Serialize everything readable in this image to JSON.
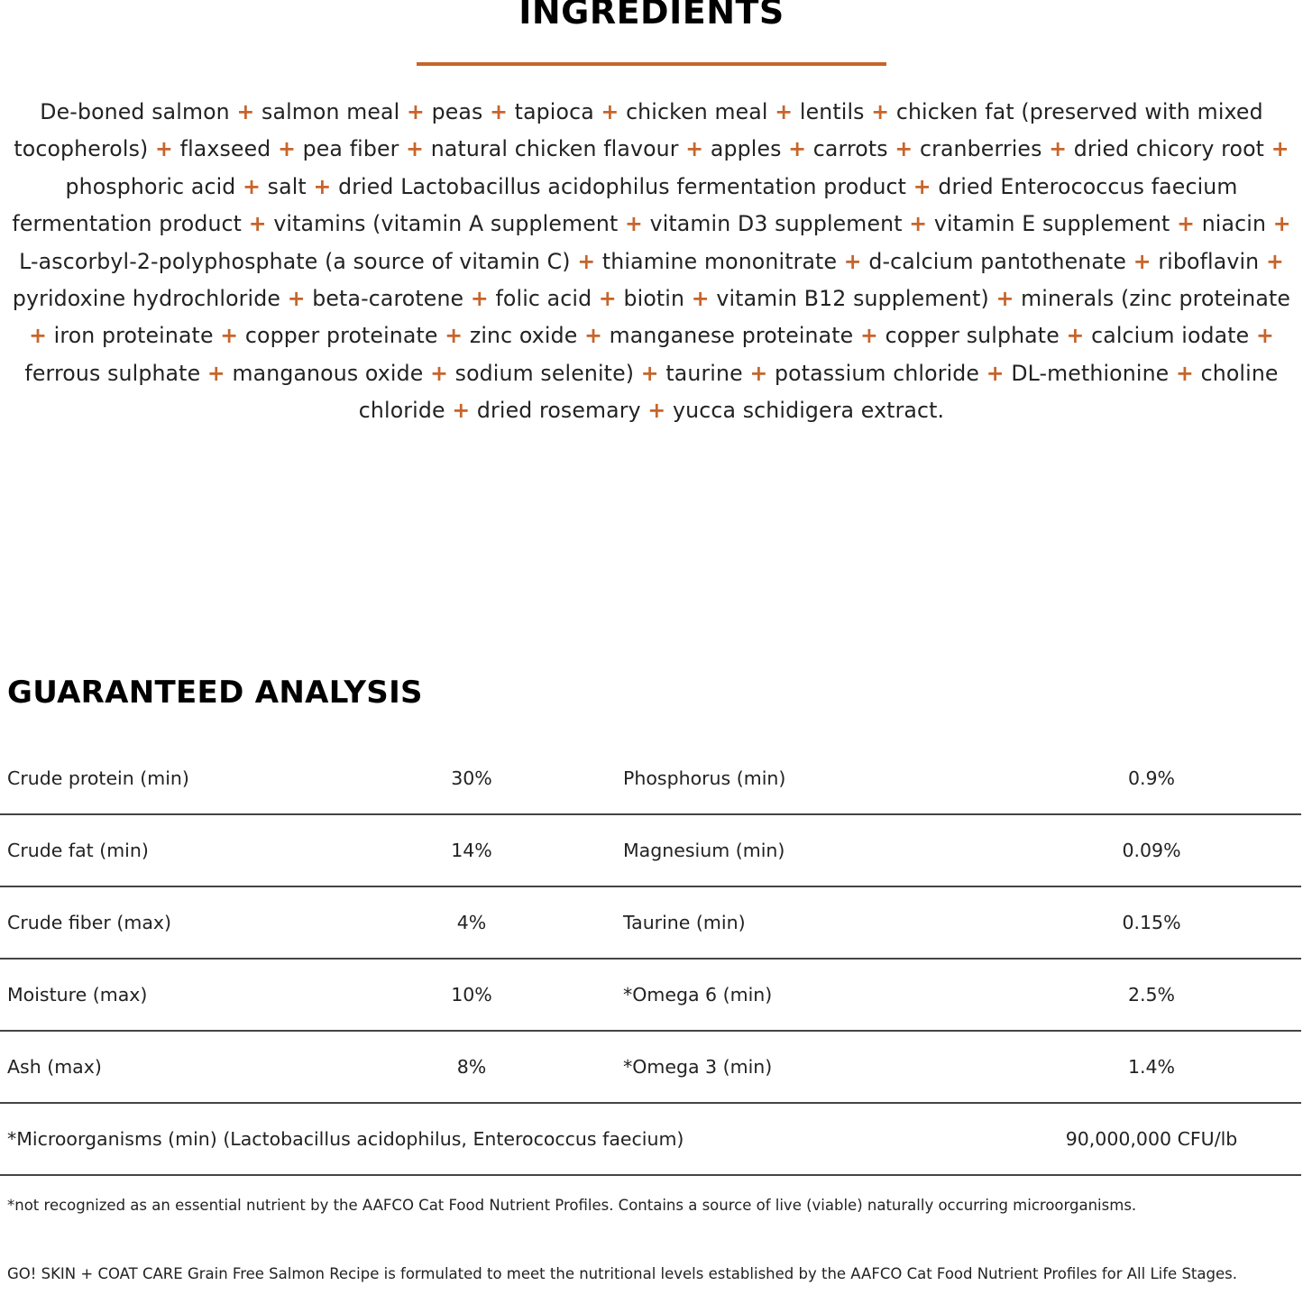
{
  "ingredients": {
    "title": "INGREDIENTS",
    "separator": "+",
    "accent_color": "#c8642a",
    "items": [
      "De-boned salmon",
      "salmon meal",
      "peas",
      "tapioca",
      "chicken meal",
      "lentils",
      "chicken fat (preserved with mixed tocopherols)",
      "flaxseed",
      "pea fiber",
      "natural chicken flavour",
      "apples",
      "carrots",
      "cranberries",
      "dried chicory root",
      "phosphoric acid",
      "salt",
      "dried Lactobacillus acidophilus fermentation product",
      "dried Enterococcus faecium fermentation product",
      "vitamins (vitamin A supplement",
      "vitamin D3 supplement",
      "vitamin E supplement",
      "niacin",
      "L-ascorbyl-2-polyphosphate (a source of vitamin C)",
      "thiamine mononitrate",
      "d-calcium pantothenate",
      "riboflavin",
      "pyridoxine hydrochloride",
      "beta-carotene",
      "folic acid",
      "biotin",
      "vitamin B12 supplement)",
      "minerals (zinc proteinate",
      "iron proteinate",
      "copper proteinate",
      "zinc oxide",
      "manganese proteinate",
      "copper sulphate",
      "calcium iodate",
      "ferrous sulphate",
      "manganous oxide",
      "sodium selenite)",
      "taurine",
      "potassium chloride",
      "DL-methionine",
      "choline chloride",
      "dried rosemary",
      "yucca schidigera extract."
    ]
  },
  "analysis": {
    "title": "GUARANTEED ANALYSIS",
    "rows": [
      {
        "label1": "Crude protein (min)",
        "value1": "30%",
        "label2": "Phosphorus (min)",
        "value2": "0.9%"
      },
      {
        "label1": "Crude fat (min)",
        "value1": "14%",
        "label2": "Magnesium (min)",
        "value2": "0.09%"
      },
      {
        "label1": "Crude fiber (max)",
        "value1": "4%",
        "label2": "Taurine (min)",
        "value2": "0.15%"
      },
      {
        "label1": "Moisture (max)",
        "value1": "10%",
        "label2": "*Omega 6 (min)",
        "value2": "2.5%"
      },
      {
        "label1": "Ash (max)",
        "value1": "8%",
        "label2": "*Omega 3 (min)",
        "value2": "1.4%"
      }
    ],
    "wide_row": {
      "label": "*Microorganisms (min) (Lactobacillus acidophilus, Enterococcus faecium)",
      "value": "90,000,000 CFU/lb"
    },
    "footnote": "*not recognized as an essential nutrient by the AAFCO Cat Food Nutrient Profiles. Contains a source of live (viable) naturally occurring microorganisms.",
    "statement": "GO! SKIN + COAT CARE Grain Free Salmon Recipe is formulated to meet the nutritional levels established by the AAFCO Cat Food Nutrient Profiles for All Life Stages."
  }
}
